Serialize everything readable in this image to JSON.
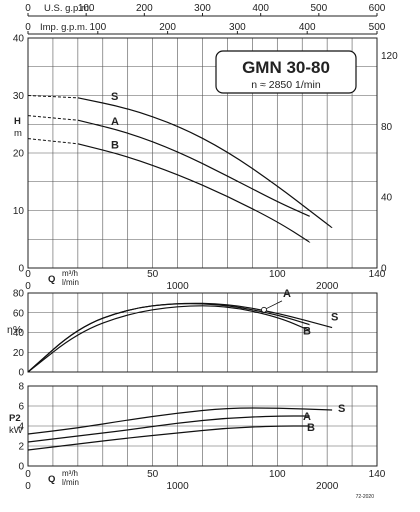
{
  "chart_data": [
    {
      "type": "line",
      "panel": "head",
      "title": "GMN 30-80",
      "subtitle": "n ≈ 2850 1/min",
      "ylabel": "H m",
      "ylim": [
        0,
        40
      ],
      "y_ticks": [
        0,
        10,
        20,
        30,
        40
      ],
      "ylim_right": [
        0,
        130
      ],
      "y_ticks_right": [
        0,
        40,
        80,
        120
      ],
      "top_axis_1_label": "U.S. g.p.m.",
      "top_axis_1_ticks": [
        0,
        100,
        200,
        300,
        400,
        500,
        600
      ],
      "top_axis_2_label": "Imp. g.p.m.",
      "top_axis_2_ticks": [
        0,
        100,
        200,
        300,
        400,
        500
      ],
      "xlabel": "Q m³/h l/min",
      "xlim": [
        0,
        140
      ],
      "x_ticks": [
        0,
        50,
        100,
        140
      ],
      "x_ticks_lmin": [
        0,
        1000,
        2000
      ],
      "grid": true,
      "series": [
        {
          "name": "S",
          "x": [
            0,
            20,
            40,
            60,
            80,
            100,
            115,
            122
          ],
          "values": [
            30,
            29.6,
            27.8,
            24.8,
            20.3,
            14.3,
            9.3,
            7.0
          ]
        },
        {
          "name": "A",
          "x": [
            0,
            20,
            40,
            60,
            80,
            100,
            113
          ],
          "values": [
            26.5,
            25.7,
            23.6,
            20.3,
            16.0,
            11.5,
            9.0
          ]
        },
        {
          "name": "B",
          "x": [
            0,
            20,
            40,
            60,
            80,
            100,
            113
          ],
          "values": [
            22.5,
            21.6,
            19.4,
            16.3,
            12.5,
            8.1,
            4.5
          ]
        }
      ]
    },
    {
      "type": "line",
      "panel": "efficiency",
      "ylabel": "η%",
      "ylim": [
        0,
        80
      ],
      "y_ticks": [
        0,
        20,
        40,
        60,
        80
      ],
      "xlim": [
        0,
        140
      ],
      "grid": true,
      "series": [
        {
          "name": "S",
          "x": [
            0,
            20,
            40,
            60,
            80,
            100,
            122
          ],
          "values": [
            0,
            45,
            64,
            70,
            69,
            60,
            45
          ]
        },
        {
          "name": "A",
          "x": [
            0,
            20,
            40,
            60,
            80,
            100,
            113
          ],
          "values": [
            0,
            45,
            64,
            70,
            68,
            58,
            48
          ]
        },
        {
          "name": "B",
          "x": [
            0,
            20,
            40,
            60,
            80,
            100,
            113
          ],
          "values": [
            0,
            40,
            59,
            67,
            67,
            56,
            42
          ]
        }
      ]
    },
    {
      "type": "line",
      "panel": "power",
      "ylabel": "P2 kW",
      "ylim": [
        0,
        8
      ],
      "y_ticks": [
        0,
        2,
        4,
        6,
        8
      ],
      "xlabel": "Q m³/h l/min",
      "xlim": [
        0,
        140
      ],
      "x_ticks": [
        0,
        50,
        100,
        140
      ],
      "x_ticks_lmin": [
        0,
        1000,
        2000
      ],
      "grid": true,
      "series": [
        {
          "name": "S",
          "x": [
            0,
            20,
            40,
            60,
            80,
            100,
            122
          ],
          "values": [
            3.2,
            3.8,
            4.6,
            5.3,
            5.8,
            5.8,
            5.6
          ]
        },
        {
          "name": "A",
          "x": [
            0,
            20,
            40,
            60,
            80,
            100,
            113
          ],
          "values": [
            2.4,
            3.0,
            3.6,
            4.3,
            4.8,
            5.0,
            5.0
          ]
        },
        {
          "name": "B",
          "x": [
            0,
            20,
            40,
            60,
            80,
            100,
            113
          ],
          "values": [
            1.6,
            2.2,
            2.8,
            3.3,
            3.8,
            4.0,
            4.0
          ]
        }
      ]
    }
  ],
  "footer_code": "72-2020"
}
